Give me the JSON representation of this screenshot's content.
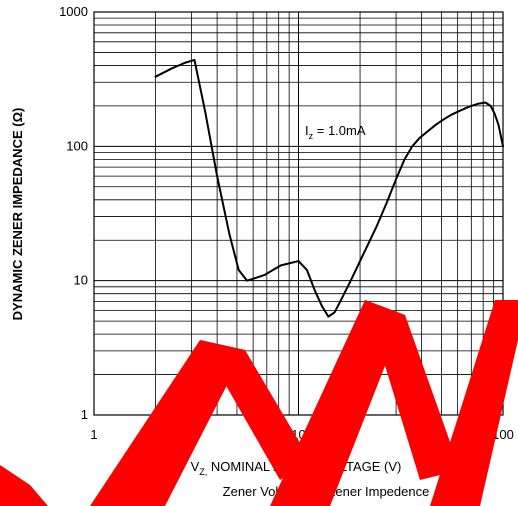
{
  "chart_data": {
    "type": "line",
    "xscale": "log",
    "yscale": "log",
    "xlim": [
      1,
      100
    ],
    "ylim": [
      1,
      1000
    ],
    "x_ticks": [
      "1",
      "10",
      "100"
    ],
    "y_ticks": [
      "1",
      "10",
      "100",
      "1000"
    ],
    "ylabel": "DYNAMIC ZENER IMPEDANCE (Ω)",
    "xlabel": "NOMINAL ZENER VOLTAGE (V)",
    "xlabel_symbol": "V",
    "xlabel_symbol_sub": "Z,",
    "caption": "Zener Voltage vs. Zener Impedence",
    "annotation": {
      "symbol": "I",
      "symbol_sub": "z",
      "value_text": " = 1.0mA",
      "x": 17,
      "y": 120
    },
    "grid": true,
    "watermark_color": "#ff0000",
    "series": [
      {
        "x": [
          2.0,
          2.4,
          2.8,
          3.1,
          3.5,
          4.0,
          4.6,
          5.1,
          5.6,
          6.2,
          6.8,
          7.5,
          8.2,
          9.1,
          10,
          11,
          12,
          13,
          14,
          15,
          16,
          18,
          20,
          24,
          27,
          30,
          33,
          36,
          39,
          43,
          47,
          51,
          56,
          62,
          68,
          75,
          82,
          87,
          91,
          95,
          100
        ],
        "y": [
          330,
          380,
          420,
          440,
          180,
          60,
          22,
          12,
          10,
          10.5,
          11,
          12,
          13,
          13.5,
          14,
          12,
          8.5,
          6.5,
          5.4,
          5.8,
          7,
          10,
          14,
          25,
          38,
          57,
          80,
          100,
          115,
          130,
          145,
          158,
          172,
          185,
          197,
          207,
          212,
          200,
          175,
          145,
          100
        ]
      }
    ]
  }
}
